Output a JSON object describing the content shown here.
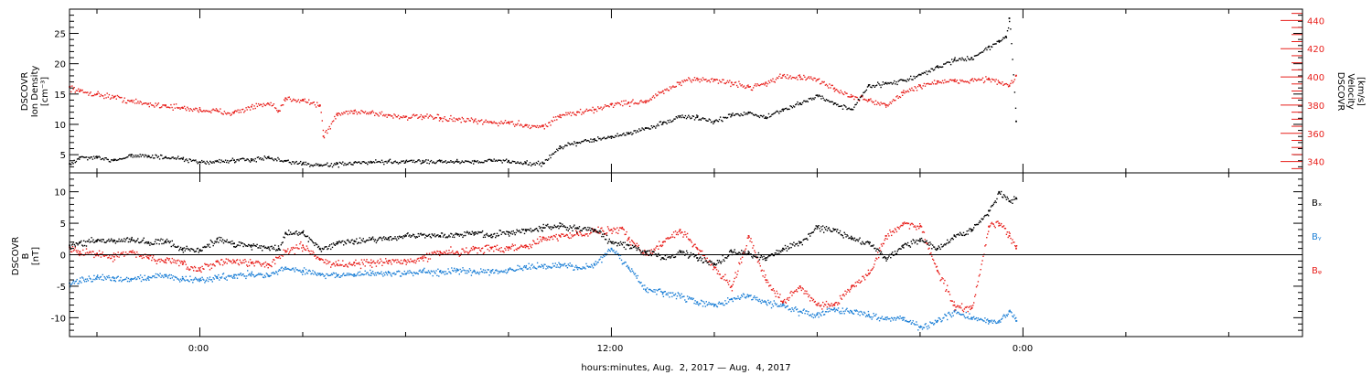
{
  "chart_data": [
    {
      "type": "scatter",
      "panel": "top",
      "ylabel_left": [
        "DSCOVR",
        "Ion Density",
        "[cm⁻³]"
      ],
      "ylabel_right": [
        "DSCOVR",
        "Velocity",
        "[km/s]"
      ],
      "ylim_left": [
        2,
        29
      ],
      "ylim_right": [
        332,
        448
      ],
      "yticks_left": [
        "5",
        "10",
        "15",
        "20",
        "25"
      ],
      "yticks_right": [
        "340",
        "360",
        "380",
        "400",
        "420",
        "440"
      ],
      "grid": false,
      "series": [
        {
          "name": "Ion Density",
          "color": "#000000",
          "axis": "left",
          "x": [
            -3.8,
            -3.5,
            -3,
            -2.5,
            -2,
            -1.5,
            -1,
            -0.5,
            0,
            0.5,
            1,
            1.5,
            2,
            2.5,
            3,
            3.5,
            4,
            4.5,
            5,
            5.5,
            6,
            6.5,
            7,
            7.5,
            8,
            8.5,
            9,
            9.5,
            10,
            10.5,
            11,
            11.5,
            12,
            12.5,
            13,
            13.5,
            14,
            14.5,
            15,
            15.5,
            16,
            16.5,
            17,
            17.5,
            18,
            18.5,
            19,
            19.5,
            20,
            20.5,
            21,
            21.5,
            22,
            22.5,
            23,
            23.3,
            23.5,
            23.6,
            23.8
          ],
          "y": [
            3.5,
            4.6,
            4.5,
            4.2,
            5.0,
            4.8,
            4.6,
            4.3,
            3.8,
            4.0,
            4.1,
            4.3,
            4.5,
            4.0,
            3.6,
            3.3,
            3.5,
            3.7,
            3.8,
            3.9,
            3.9,
            4.0,
            4.0,
            3.9,
            4.0,
            4.1,
            4.0,
            3.7,
            3.6,
            6.4,
            7.0,
            7.6,
            8.0,
            8.6,
            9.4,
            10.3,
            11.4,
            11.2,
            10.5,
            11.6,
            12.0,
            11.2,
            12.5,
            13.5,
            14.8,
            13.5,
            12.5,
            16.5,
            16.8,
            17.3,
            18.2,
            19.5,
            20.7,
            21.0,
            22.8,
            23.8,
            24.5,
            27.5,
            10.5
          ]
        },
        {
          "name": "Velocity",
          "color": "#e8201c",
          "axis": "right",
          "x": [
            -3.8,
            -3.5,
            -3,
            -2.5,
            -2,
            -1.5,
            -1,
            -0.5,
            0,
            0.5,
            1,
            1.5,
            2,
            2.3,
            2.5,
            3,
            3.5,
            3.6,
            4,
            4.5,
            5,
            5.5,
            6,
            6.5,
            7,
            7.5,
            8,
            8.5,
            9,
            9.5,
            10,
            10.5,
            11,
            11.5,
            12,
            12.5,
            13,
            13.5,
            14,
            14.5,
            15,
            15.5,
            16,
            16.5,
            17,
            17.5,
            18,
            18.5,
            19,
            19.5,
            20,
            20.5,
            21,
            21.5,
            22,
            22.5,
            23,
            23.3,
            23.6,
            23.8
          ],
          "y": [
            393,
            390,
            388,
            386,
            383,
            381,
            380,
            378,
            377,
            376,
            375,
            379,
            381,
            376,
            385,
            384,
            380,
            358,
            374,
            376,
            375,
            373,
            372,
            372,
            371,
            370,
            369,
            368,
            368,
            366,
            365,
            373,
            375,
            377,
            381,
            382,
            383,
            390,
            396,
            399,
            398,
            396,
            393,
            396,
            401,
            400,
            398,
            392,
            386,
            384,
            380,
            389,
            394,
            397,
            397,
            398,
            399,
            396,
            394,
            401
          ]
        }
      ]
    },
    {
      "type": "scatter",
      "panel": "bottom",
      "ylabel": [
        "DSCOVR",
        "B",
        "[nT]"
      ],
      "ylim": [
        -13,
        13
      ],
      "yticks": [
        "-10",
        "-5",
        "0",
        "5",
        "10"
      ],
      "zero_line": true,
      "grid": false,
      "legend_position": "right",
      "series": [
        {
          "name": "Bₓ",
          "color": "#000000",
          "x": [
            -3.8,
            -3.5,
            -3,
            -2.5,
            -2,
            -1.5,
            -1,
            -0.5,
            0,
            0.5,
            1,
            1.5,
            2,
            2.3,
            2.5,
            3,
            3.5,
            4,
            4.5,
            5,
            5.5,
            6,
            6.5,
            7,
            7.5,
            8,
            8.5,
            9,
            9.5,
            10,
            10.5,
            11,
            11.5,
            12,
            12.5,
            13,
            13.5,
            14,
            14.5,
            15,
            15.5,
            16,
            16.5,
            17,
            17.5,
            18,
            18.5,
            19,
            19.5,
            20,
            20.5,
            21,
            21.5,
            22,
            22.5,
            23,
            23.3,
            23.6,
            23.8
          ],
          "y": [
            1.5,
            2.0,
            2.3,
            2.2,
            2.5,
            2.0,
            2.2,
            1.0,
            0.8,
            2.5,
            1.8,
            1.5,
            1.2,
            1.0,
            3.5,
            3.5,
            1.0,
            2.0,
            2.2,
            2.5,
            2.7,
            3.0,
            3.2,
            3.0,
            3.3,
            3.5,
            3.2,
            3.6,
            4.0,
            4.3,
            4.5,
            4.2,
            4.0,
            2.0,
            1.5,
            0.5,
            -0.5,
            0.5,
            -0.5,
            -1.5,
            0.5,
            0.2,
            -0.5,
            1.0,
            2.0,
            4.5,
            4.0,
            2.5,
            2.0,
            -0.5,
            1.5,
            2.5,
            1.0,
            3.0,
            4.0,
            7.0,
            10.0,
            8.5,
            9.0
          ]
        },
        {
          "name": "Bᵧ",
          "color": "#1c7fd6",
          "x": [
            -3.8,
            -3.5,
            -3,
            -2.5,
            -2,
            -1.5,
            -1,
            -0.5,
            0,
            0.5,
            1,
            1.5,
            2,
            2.5,
            3,
            3.5,
            4,
            4.5,
            5,
            5.5,
            6,
            6.5,
            7,
            7.5,
            8,
            8.5,
            9,
            9.5,
            10,
            10.5,
            11,
            11.5,
            12,
            12.5,
            13,
            13.5,
            14,
            14.5,
            15,
            15.5,
            16,
            16.5,
            17,
            17.5,
            18,
            18.5,
            19,
            19.5,
            20,
            20.5,
            21,
            21.5,
            22,
            22.5,
            23,
            23.3,
            23.6,
            23.8
          ],
          "y": [
            -4.5,
            -4.2,
            -3.5,
            -3.7,
            -3.8,
            -3.5,
            -3.2,
            -3.8,
            -4.0,
            -3.5,
            -3.2,
            -3.0,
            -3.3,
            -2.0,
            -2.5,
            -3.0,
            -3.2,
            -3.1,
            -2.9,
            -2.8,
            -3.0,
            -2.5,
            -2.7,
            -2.5,
            -2.6,
            -2.5,
            -2.3,
            -2.0,
            -1.8,
            -1.5,
            -2.0,
            -1.5,
            1.0,
            -2.0,
            -5.5,
            -6.0,
            -6.5,
            -7.5,
            -8.0,
            -7.0,
            -6.5,
            -7.5,
            -8.0,
            -9.0,
            -9.5,
            -8.5,
            -9.0,
            -9.5,
            -10.0,
            -10.0,
            -11.5,
            -10.5,
            -9.0,
            -10.0,
            -10.5,
            -10.5,
            -9.0,
            -10.5
          ]
        },
        {
          "name": "Bᵩ",
          "color": "#e8201c",
          "x": [
            -3.8,
            -3.5,
            -3,
            -2.5,
            -2,
            -1.5,
            -1,
            -0.5,
            0,
            0.5,
            1,
            1.5,
            2,
            2.5,
            3,
            3.5,
            4,
            4.5,
            5,
            5.5,
            6,
            6.5,
            7,
            7.5,
            8,
            8.5,
            9,
            9.5,
            10,
            10.5,
            11,
            11.5,
            12,
            12.3,
            12.5,
            13,
            13.5,
            14,
            14.5,
            15,
            15.5,
            16,
            16.5,
            17,
            17.5,
            18,
            18.5,
            19,
            19.5,
            20,
            20.5,
            21,
            21.5,
            22,
            22.5,
            23,
            23.3,
            23.6,
            23.8
          ],
          "y": [
            1.2,
            0.5,
            0.2,
            -0.3,
            0.5,
            -0.5,
            -0.8,
            -1.5,
            -2.5,
            -1.0,
            -1.0,
            -1.2,
            -1.5,
            0.5,
            1.5,
            -0.8,
            -1.5,
            -1.2,
            -1.3,
            -1.0,
            -1.0,
            -0.5,
            0.5,
            0.5,
            1.0,
            1.0,
            1.2,
            1.5,
            2.5,
            3.0,
            3.5,
            3.8,
            4.0,
            4.2,
            2.5,
            0.0,
            2.0,
            4.0,
            1.0,
            -2.0,
            -5.0,
            3.0,
            -4.0,
            -7.5,
            -5.0,
            -8.0,
            -8.0,
            -5.0,
            -3.0,
            3.0,
            5.0,
            4.5,
            -2.5,
            -8.0,
            -8.5,
            4.5,
            5.0,
            3.0,
            1.0
          ]
        }
      ]
    }
  ],
  "x_axis": {
    "tick_labels": [
      "0:00",
      "12:00",
      "0:00"
    ],
    "title": "hours:minutes, Aug.  2, 2017 — Aug.  4, 2017"
  },
  "legend": {
    "items": [
      "Bₓ",
      "Bᵧ",
      "Bᵩ"
    ],
    "colors": [
      "#000000",
      "#1c7fd6",
      "#e8201c"
    ]
  }
}
